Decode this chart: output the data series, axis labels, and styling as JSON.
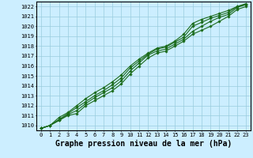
{
  "title": "Graphe pression niveau de la mer (hPa)",
  "x_labels": [
    0,
    1,
    2,
    3,
    4,
    5,
    6,
    7,
    8,
    9,
    10,
    11,
    12,
    13,
    14,
    15,
    16,
    17,
    18,
    19,
    20,
    21,
    22,
    23
  ],
  "ylim": [
    1009.5,
    1022.5
  ],
  "yticks": [
    1010,
    1011,
    1012,
    1013,
    1014,
    1015,
    1016,
    1017,
    1018,
    1019,
    1020,
    1021,
    1022
  ],
  "background_color": "#cceeff",
  "grid_color": "#99ccdd",
  "line_color": "#1a6b1a",
  "lines": [
    [
      1009.7,
      1010.0,
      1010.5,
      1011.0,
      1011.2,
      1012.0,
      1012.5,
      1013.0,
      1013.5,
      1014.2,
      1015.2,
      1016.0,
      1016.8,
      1017.3,
      1017.5,
      1018.0,
      1018.5,
      1019.2,
      1019.6,
      1020.0,
      1020.5,
      1021.0,
      1021.7,
      1022.0
    ],
    [
      1009.7,
      1010.0,
      1010.5,
      1011.1,
      1011.5,
      1012.2,
      1012.8,
      1013.3,
      1013.8,
      1014.5,
      1015.5,
      1016.3,
      1017.1,
      1017.5,
      1017.7,
      1018.2,
      1018.7,
      1019.5,
      1020.0,
      1020.5,
      1020.9,
      1021.2,
      1021.9,
      1022.2
    ],
    [
      1009.7,
      1010.0,
      1010.6,
      1011.2,
      1011.8,
      1012.4,
      1013.0,
      1013.5,
      1014.1,
      1014.8,
      1015.8,
      1016.5,
      1017.2,
      1017.7,
      1017.9,
      1018.4,
      1018.9,
      1020.0,
      1020.4,
      1020.8,
      1021.1,
      1021.4,
      1022.0,
      1022.2
    ],
    [
      1009.7,
      1010.0,
      1010.8,
      1011.3,
      1012.0,
      1012.7,
      1013.3,
      1013.8,
      1014.4,
      1015.1,
      1016.0,
      1016.7,
      1017.3,
      1017.8,
      1018.0,
      1018.5,
      1019.2,
      1020.3,
      1020.7,
      1021.0,
      1021.3,
      1021.6,
      1022.0,
      1022.3
    ]
  ],
  "marker": "D",
  "markersize": 1.8,
  "linewidth": 0.8,
  "title_fontsize": 7,
  "tick_fontsize": 5
}
